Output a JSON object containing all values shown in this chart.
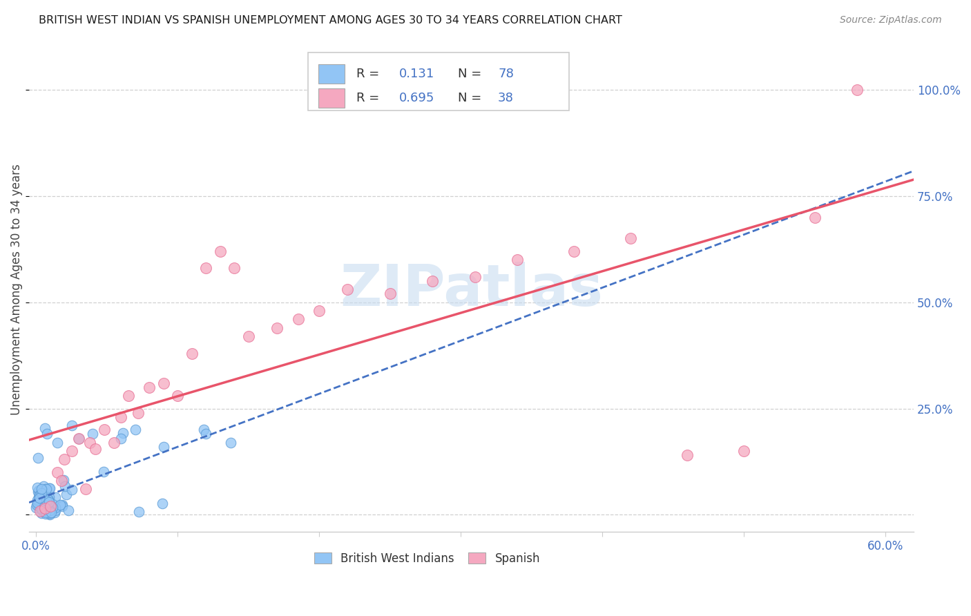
{
  "title": "BRITISH WEST INDIAN VS SPANISH UNEMPLOYMENT AMONG AGES 30 TO 34 YEARS CORRELATION CHART",
  "source": "Source: ZipAtlas.com",
  "ylabel": "Unemployment Among Ages 30 to 34 years",
  "xlim": [
    -0.005,
    0.62
  ],
  "ylim": [
    -0.04,
    1.1
  ],
  "xtick_vals": [
    0.0,
    0.1,
    0.2,
    0.3,
    0.4,
    0.5,
    0.6
  ],
  "xticklabels_sparse": [
    "0.0%",
    "",
    "",
    "",
    "",
    "",
    "60.0%"
  ],
  "ytick_vals": [
    0.0,
    0.25,
    0.5,
    0.75,
    1.0
  ],
  "ytick_labels_right": [
    "",
    "25.0%",
    "50.0%",
    "75.0%",
    "100.0%"
  ],
  "watermark": "ZIPatlas",
  "bwi_color": "#92C5F5",
  "bwi_edge_color": "#5B9BD5",
  "spanish_color": "#F5A8C0",
  "spanish_edge_color": "#E87095",
  "bwi_line_color": "#4472C4",
  "spanish_line_color": "#E8546A",
  "title_color": "#1a1a1a",
  "axis_tick_color": "#4472C4",
  "ylabel_color": "#444444",
  "source_color": "#888888",
  "grid_color": "#d0d0d0",
  "background_color": "#FFFFFF",
  "watermark_color": "#C8DCF0",
  "legend_text_color": "#4472C4",
  "legend_label_color": "#333333"
}
